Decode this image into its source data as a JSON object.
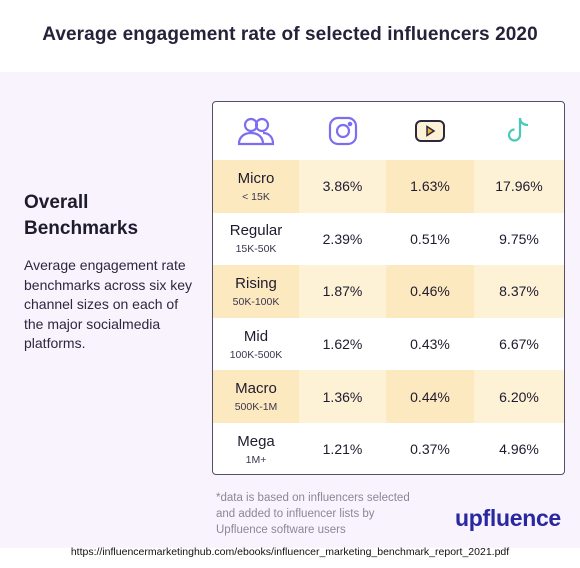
{
  "title": "Average engagement rate of selected influencers 2020",
  "heading": "Overall Benchmarks",
  "description": "Average engagement rate benchmarks across six key channel sizes on each of the major socialmedia platforms.",
  "columns": [
    {
      "icon": "users-icon"
    },
    {
      "icon": "instagram-icon"
    },
    {
      "icon": "youtube-icon"
    },
    {
      "icon": "tiktok-icon"
    }
  ],
  "rows": [
    {
      "label": "Micro",
      "range": "< 15K",
      "instagram": "3.86%",
      "youtube": "1.63%",
      "tiktok": "17.96%"
    },
    {
      "label": "Regular",
      "range": "15K-50K",
      "instagram": "2.39%",
      "youtube": "0.51%",
      "tiktok": "9.75%"
    },
    {
      "label": "Rising",
      "range": "50K-100K",
      "instagram": "1.87%",
      "youtube": "0.46%",
      "tiktok": "8.37%"
    },
    {
      "label": "Mid",
      "range": "100K-500K",
      "instagram": "1.62%",
      "youtube": "0.43%",
      "tiktok": "6.67%"
    },
    {
      "label": "Macro",
      "range": "500K-1M",
      "instagram": "1.36%",
      "youtube": "0.44%",
      "tiktok": "6.20%"
    },
    {
      "label": "Mega",
      "range": "1M+",
      "instagram": "1.21%",
      "youtube": "0.37%",
      "tiktok": "4.96%"
    }
  ],
  "footnote": "*data is based on influencers selected and added to influencer lists by Upfluence software users",
  "brand": "upfluence",
  "source": "https://influencermarketinghub.com/ebooks/influencer_marketing_benchmark_report_2021.pdf",
  "colors": {
    "highlight_primary": "#fde9bf",
    "highlight_secondary": "#fdf1d6",
    "panel_background": "#f8f3fc",
    "icon_accent": "#7b6ff0",
    "tiktok_accent": "#49c9b9",
    "brand": "#2a28a0"
  }
}
